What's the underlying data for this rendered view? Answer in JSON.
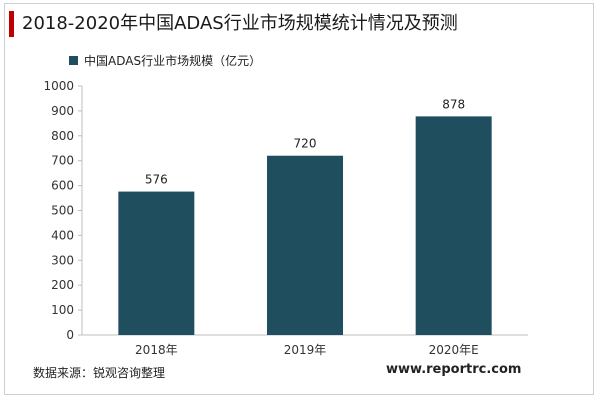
{
  "header": {
    "title": "2018-2020年中国ADAS行业市场规模统计情况及预测"
  },
  "chart_data": {
    "type": "bar",
    "title": "2018-2020年中国ADAS行业市场规模统计情况及预测",
    "categories": [
      "2018年",
      "2019年",
      "2020年E"
    ],
    "series": [
      {
        "name": "中国ADAS行业市场规模（亿元）",
        "values": [
          576,
          720,
          878
        ],
        "color": "#1f4e5f"
      }
    ],
    "xlabel": "",
    "ylabel": "",
    "ylim": [
      0,
      1000
    ],
    "yticks": [
      0,
      100,
      200,
      300,
      400,
      500,
      600,
      700,
      800,
      900,
      1000
    ],
    "ytick_labels": [
      "0",
      "100",
      "200",
      "300",
      "400",
      "500",
      "600",
      "700",
      "800",
      "900",
      "1000"
    ],
    "data_labels": [
      "576",
      "720",
      "878"
    ],
    "grid": false,
    "legend": "top-left"
  },
  "footer": {
    "source": "数据来源：锐观咨询整理",
    "website": "www.reportrc.com"
  }
}
